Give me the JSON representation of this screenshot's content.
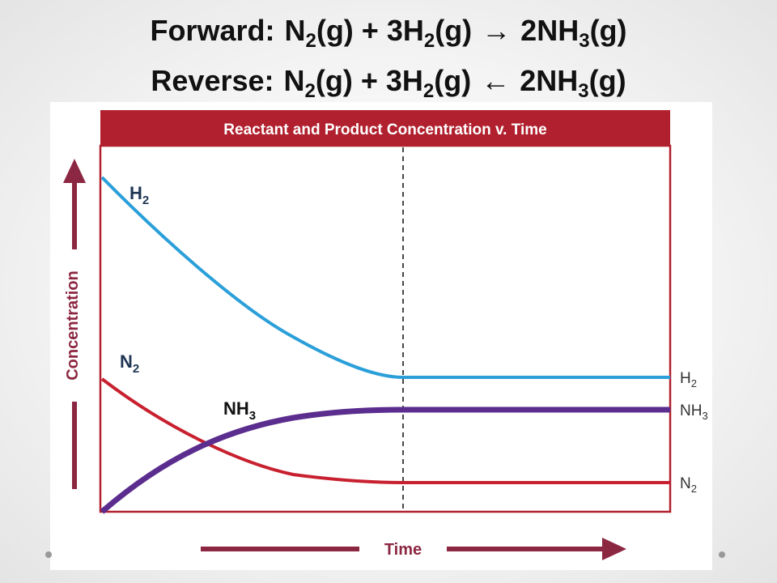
{
  "equations": {
    "forward": {
      "label": "Forward:",
      "parts": [
        "N",
        "2",
        "(g) + 3H",
        "2",
        "(g)",
        "→",
        "2NH",
        "3",
        "(g)"
      ]
    },
    "reverse": {
      "label": "Reverse:",
      "parts": [
        "N",
        "2",
        "(g) + 3H",
        "2",
        "(g)",
        "←",
        "2NH",
        "3",
        "(g)"
      ]
    }
  },
  "chart_data": {
    "type": "line",
    "title": "Reactant and Product Concentration v. Time",
    "xlabel": "Time",
    "ylabel": "Concentration",
    "grid": false,
    "equilibrium_marker": "dashed vertical line",
    "colors": {
      "title_bar": "#b1202e",
      "frame": "#b1202e",
      "axis_arrows": "#8c2742",
      "H2": "#2b9fd9",
      "N2": "#c8202f",
      "NH3": "#5b2d8e"
    },
    "series": [
      {
        "name": "H2",
        "label": "H",
        "sub": "2",
        "end_label": "H",
        "end_sub": "2"
      },
      {
        "name": "N2",
        "label": "N",
        "sub": "2",
        "end_label": "N",
        "end_sub": "2"
      },
      {
        "name": "NH3",
        "label": "NH",
        "sub": "3",
        "end_label": "NH",
        "end_sub": "3"
      }
    ]
  }
}
